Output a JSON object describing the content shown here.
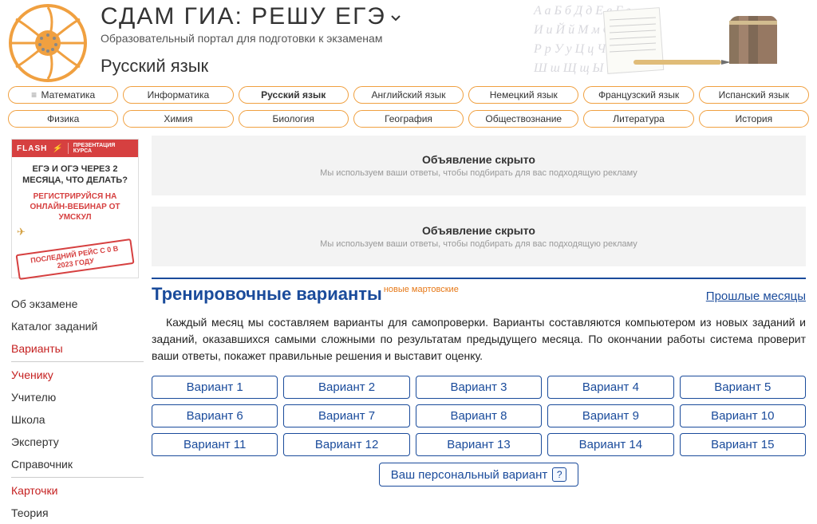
{
  "header": {
    "title": "СДАМ ГИА:  РЕШУ ЕГЭ",
    "subtitle": "Образовательный портал для подготовки к экзаменам",
    "subject": "Русский язык"
  },
  "nav_row1": [
    {
      "label": "Математика",
      "hamb": true
    },
    {
      "label": "Информатика"
    },
    {
      "label": "Русский язык",
      "active": true
    },
    {
      "label": "Английский язык"
    },
    {
      "label": "Немецкий язык"
    },
    {
      "label": "Французский язык"
    },
    {
      "label": "Испанский язык"
    }
  ],
  "nav_row2": [
    {
      "label": "Физика"
    },
    {
      "label": "Химия"
    },
    {
      "label": "Биология"
    },
    {
      "label": "География"
    },
    {
      "label": "Обществознание"
    },
    {
      "label": "Литература"
    },
    {
      "label": "История"
    }
  ],
  "ad_sidebar": {
    "flash": "FLASH",
    "flash_sub": "ПРЕЗЕНТАЦИЯ КУРСА",
    "headline": "ЕГЭ И ОГЭ ЧЕРЕЗ 2 МЕСЯЦА, ЧТО ДЕЛАТЬ?",
    "reg": "РЕГИСТРИРУЙСЯ НА ОНЛАЙН-ВЕБИНАР ОТ УМСКУЛ",
    "stamp": "ПОСЛЕДНИЙ РЕЙС С 0 В 2023 ГОДУ"
  },
  "side_menu": [
    {
      "label": "Об экзамене"
    },
    {
      "label": "Каталог заданий"
    },
    {
      "label": "Варианты",
      "red": true
    },
    {
      "label": "Ученику",
      "red": true,
      "sep": true
    },
    {
      "label": "Учителю"
    },
    {
      "label": "Школа"
    },
    {
      "label": "Эксперту"
    },
    {
      "label": "Справочник"
    },
    {
      "label": "Карточки",
      "red": true,
      "sep": true
    },
    {
      "label": "Теория"
    }
  ],
  "hidden_ad": {
    "title": "Объявление скрыто",
    "sub": "Мы используем ваши ответы, чтобы подбирать для вас подходящую рекламу"
  },
  "section": {
    "title": "Тренировочные варианты",
    "badge": "новые мартовские",
    "link_right": "Прошлые месяцы",
    "body": "Каждый месяц мы составляем варианты для самопроверки. Варианты составляются компьютером из новых заданий и заданий, оказавшихся самыми сложными по результатам предыдущего месяца. По окончании работы система проверит ваши ответы, покажет правильные решения и выставит оценку."
  },
  "variants": [
    "Вариант 1",
    "Вариант 2",
    "Вариант 3",
    "Вариант 4",
    "Вариант 5",
    "Вариант 6",
    "Вариант 7",
    "Вариант 8",
    "Вариант 9",
    "Вариант 10",
    "Вариант 11",
    "Вариант 12",
    "Вариант 13",
    "Вариант 14",
    "Вариант 15"
  ],
  "personal_variant": "Ваш персональный вариант",
  "colors": {
    "accent_blue": "#1a4b9b",
    "accent_orange": "#f0a040",
    "red_text": "#c52020",
    "badge_orange": "#e67817"
  }
}
